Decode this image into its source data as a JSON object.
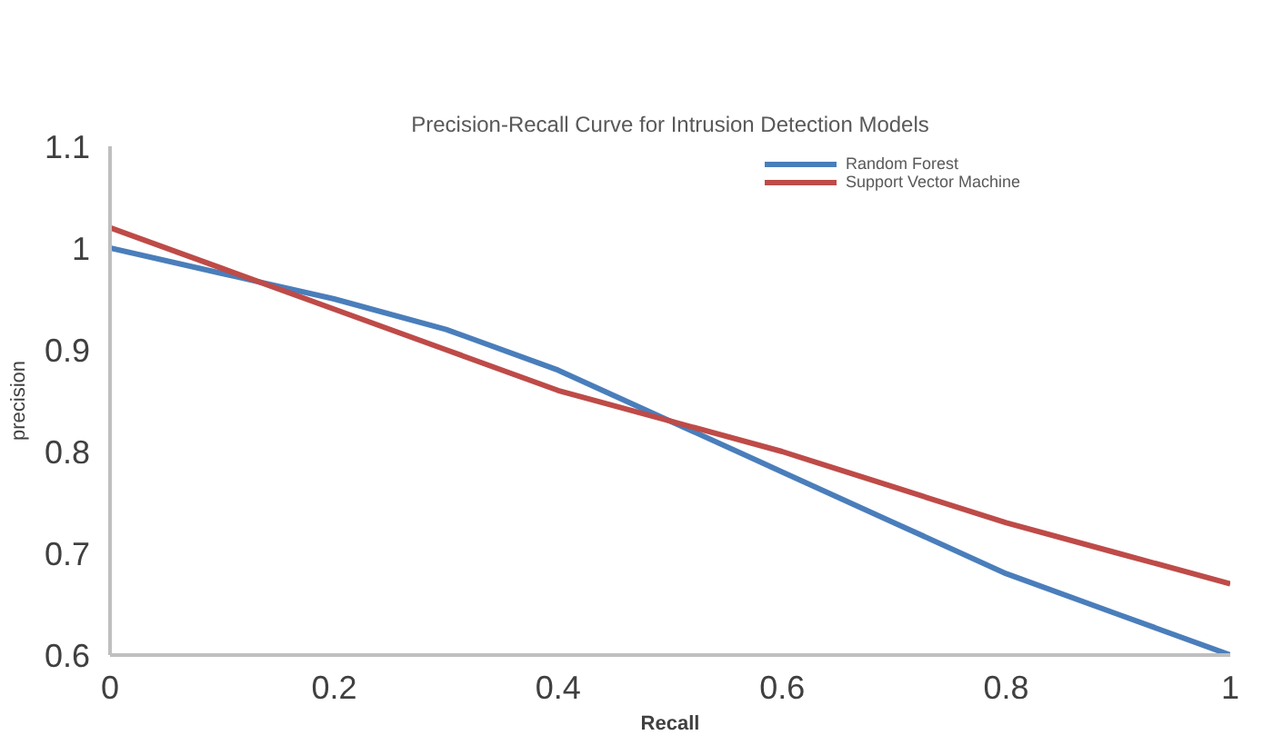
{
  "chart_data": {
    "type": "line",
    "title": "Precision-Recall Curve for Intrusion Detection Models",
    "xlabel": "Recall",
    "ylabel": "precision",
    "x": [
      0,
      0.1,
      0.2,
      0.3,
      0.4,
      0.5,
      0.6,
      0.7,
      0.8,
      0.9,
      1
    ],
    "series": [
      {
        "name": "Random Forest",
        "color": "#4a7ebb",
        "values": [
          1.0,
          0.975,
          0.95,
          0.92,
          0.88,
          0.83,
          0.78,
          0.73,
          0.68,
          0.64,
          0.6
        ]
      },
      {
        "name": "Support Vector Machine",
        "color": "#be4b48",
        "values": [
          1.02,
          0.98,
          0.94,
          0.9,
          0.86,
          0.83,
          0.8,
          0.765,
          0.73,
          0.7,
          0.67
        ]
      }
    ],
    "xlim": [
      0,
      1
    ],
    "ylim": [
      0.6,
      1.1
    ],
    "xticks": [
      0,
      0.2,
      0.4,
      0.6,
      0.8,
      1
    ],
    "yticks": [
      0.6,
      0.7,
      0.8,
      0.9,
      1,
      1.1
    ],
    "grid": false,
    "legend": "top right",
    "marker": "none",
    "line_style": "solid"
  }
}
